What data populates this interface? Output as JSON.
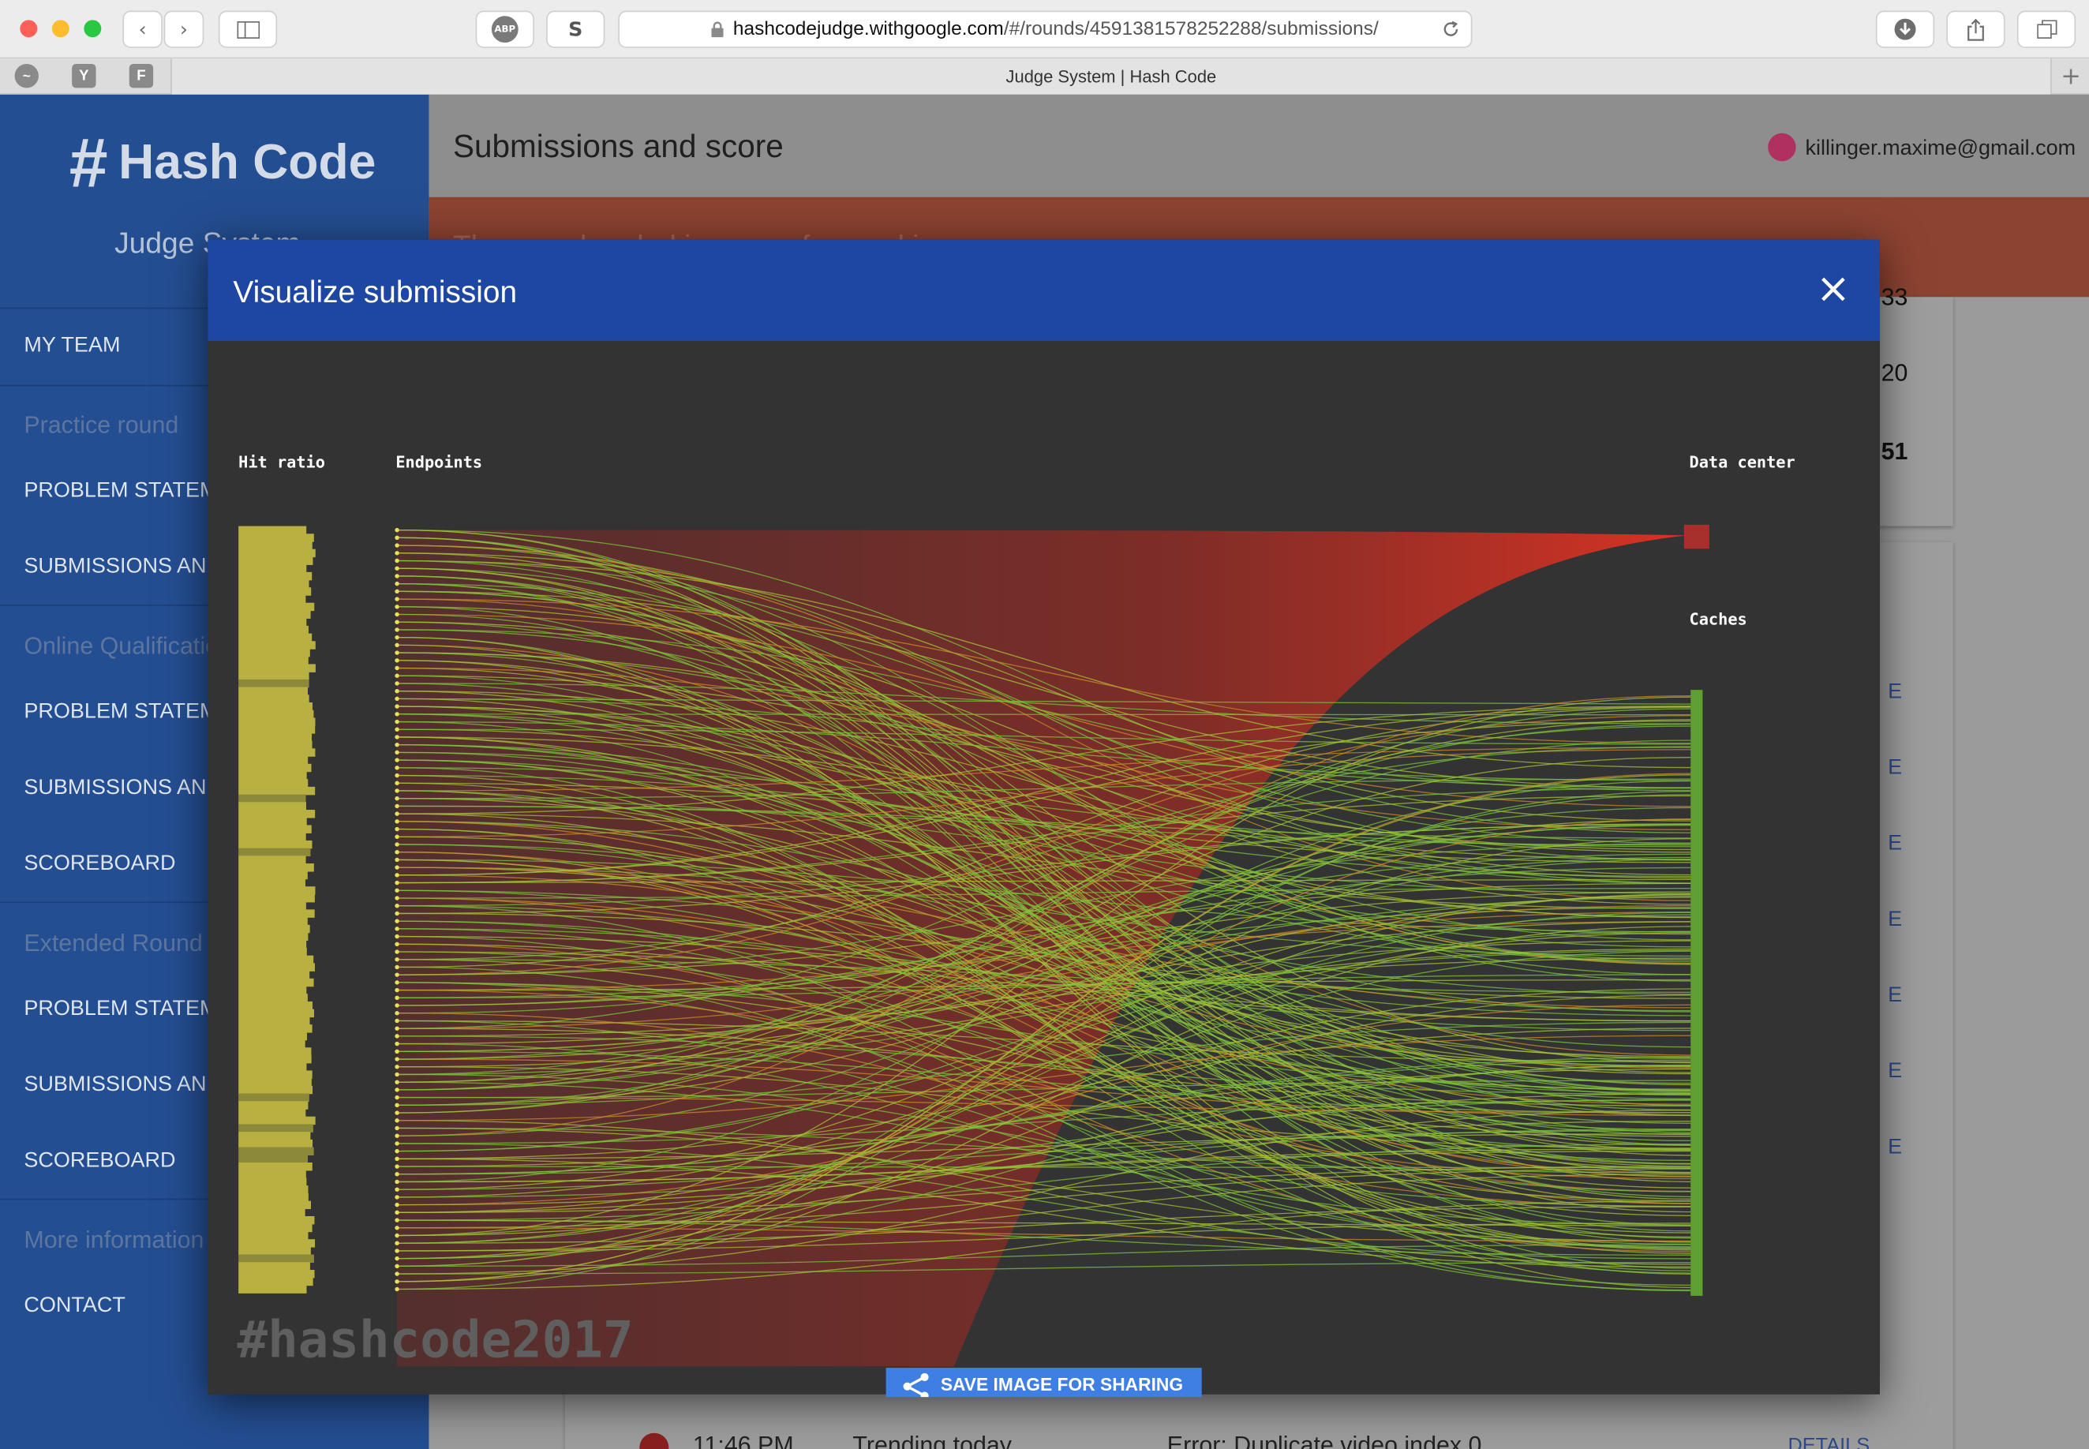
{
  "browser": {
    "url_host": "hashcodejudge.withgoogle.com",
    "url_path": "/#/rounds/4591381578252288/submissions/",
    "tab_title": "Judge System | Hash Code",
    "adblock_label": "ABP",
    "s_label": "S",
    "fav_y": "Y",
    "fav_f": "F"
  },
  "sidebar": {
    "logo_hash": "#",
    "logo_text": "Hash Code",
    "subtitle": "Judge System",
    "items": [
      {
        "label": "MY TEAM",
        "type": "link"
      },
      {
        "label": "Practice round",
        "type": "section"
      },
      {
        "label": "PROBLEM STATEMENT",
        "type": "link"
      },
      {
        "label": "SUBMISSIONS AND SCORE",
        "type": "link"
      },
      {
        "label": "Online Qualification Round",
        "type": "section"
      },
      {
        "label": "PROBLEM STATEMENT",
        "type": "link"
      },
      {
        "label": "SUBMISSIONS AND SCORE",
        "type": "link"
      },
      {
        "label": "SCOREBOARD",
        "type": "link"
      },
      {
        "label": "Extended Round",
        "type": "section"
      },
      {
        "label": "PROBLEM STATEMENT",
        "type": "link"
      },
      {
        "label": "SUBMISSIONS AND SCORE",
        "type": "link"
      },
      {
        "label": "SCOREBOARD",
        "type": "link"
      },
      {
        "label": "More information",
        "type": "section"
      },
      {
        "label": "CONTACT",
        "type": "link"
      }
    ]
  },
  "main": {
    "title": "Submissions and score",
    "user_email": "killinger.maxime@gmail.com",
    "banner_text": "The round ended in case of … ranking …",
    "peek_values": [
      "33",
      "20",
      "51"
    ],
    "peek_detail": "E",
    "bottom_row": {
      "time": "11:46 PM",
      "dataset": "Trending today",
      "status": "Error: Duplicate video index 0",
      "action": "DETAILS"
    }
  },
  "modal": {
    "title": "Visualize submission",
    "close_icon": "×",
    "labels": {
      "hit_ratio": "Hit ratio",
      "endpoints": "Endpoints",
      "data_center": "Data center",
      "caches": "Caches"
    },
    "hashtag": "#hashcode2017",
    "save_button": "SAVE IMAGE FOR SHARING"
  },
  "colors": {
    "sidebar": "#244e92",
    "modal_header": "#1d47a3",
    "viz_bg": "#333333",
    "cache_link": "#7cc23c",
    "datacenter_link": "#e0301e",
    "hit_bar": "#b8b040",
    "button": "#3f7ee2"
  }
}
